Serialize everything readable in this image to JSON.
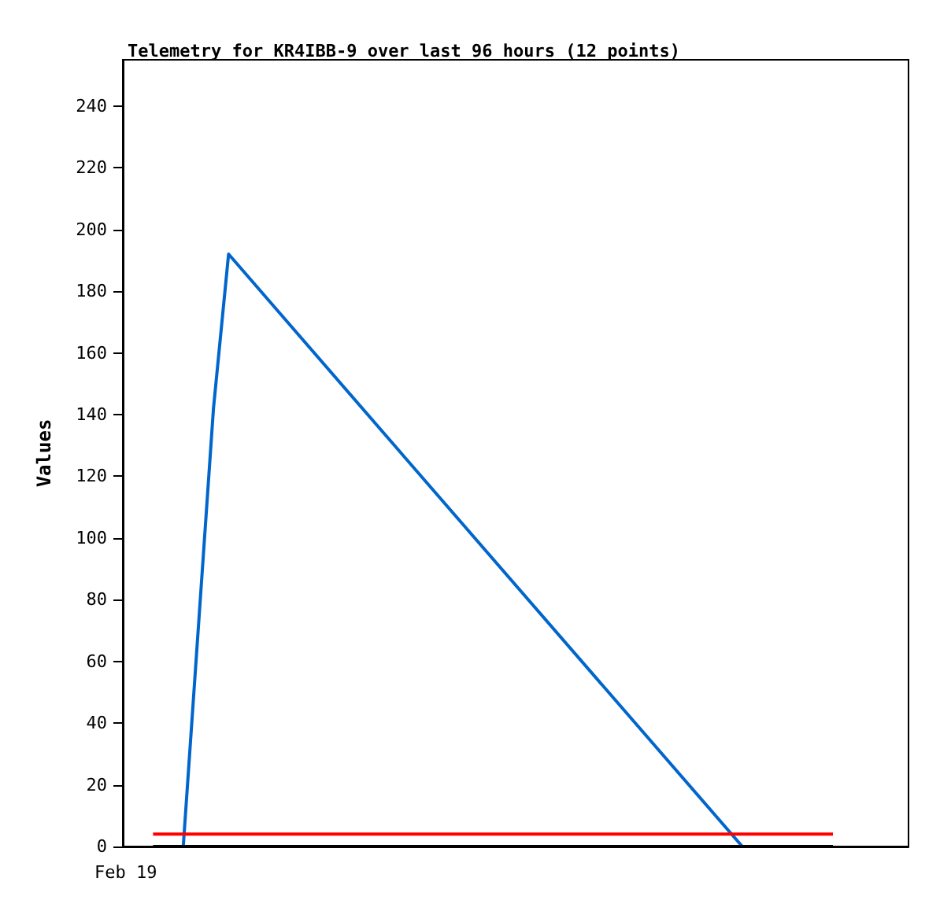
{
  "chart_data": {
    "type": "line",
    "title": "Telemetry for KR4IBB-9 over last 96 hours (12 points)",
    "ylabel": "Values",
    "annotations": [
      "Feb 19"
    ],
    "categories": [
      null,
      null,
      null,
      null,
      null,
      null,
      null,
      null,
      null,
      null,
      null,
      null,
      null,
      null,
      null,
      null,
      null,
      null,
      null,
      null,
      null,
      null,
      null,
      null,
      null,
      null,
      null,
      null,
      null,
      null,
      null,
      null,
      null,
      null,
      null,
      null,
      null,
      null,
      null,
      null,
      null,
      null,
      null,
      null,
      null,
      null,
      null,
      null,
      null,
      null,
      null,
      null,
      null
    ],
    "ylim": [
      0,
      255
    ],
    "yticks": [
      0,
      20,
      40,
      60,
      80,
      100,
      120,
      140,
      160,
      180,
      200,
      220,
      240
    ],
    "grid": false,
    "marker": "none",
    "line_style": "solid",
    "series": [
      {
        "color": "#0066cc",
        "values": [
          null,
          null,
          null,
          null,
          0,
          null,
          142,
          192,
          null,
          null,
          null,
          null,
          null,
          null,
          null,
          null,
          null,
          null,
          null,
          null,
          null,
          null,
          null,
          null,
          null,
          null,
          null,
          null,
          null,
          null,
          null,
          null,
          null,
          null,
          null,
          null,
          null,
          null,
          null,
          null,
          null,
          0,
          null,
          null,
          null,
          null,
          null,
          null,
          null,
          null,
          null,
          null,
          null
        ]
      },
      {
        "color": "#000000",
        "values": [
          null,
          null,
          0,
          0,
          0,
          0,
          0,
          0,
          0,
          0,
          0,
          0,
          0,
          0,
          0,
          0,
          0,
          0,
          0,
          0,
          0,
          0,
          0,
          0,
          0,
          0,
          0,
          0,
          0,
          0,
          0,
          0,
          0,
          0,
          0,
          0,
          0,
          0,
          0,
          0,
          0,
          0,
          0,
          0,
          0,
          0,
          0,
          0,
          null,
          null,
          null,
          null,
          null
        ]
      },
      {
        "color": "#ff0000",
        "values": [
          null,
          null,
          4,
          4,
          4,
          4,
          4,
          4,
          4,
          4,
          4,
          4,
          4,
          4,
          4,
          4,
          4,
          4,
          4,
          4,
          4,
          4,
          4,
          4,
          4,
          4,
          4,
          4,
          4,
          4,
          4,
          4,
          4,
          4,
          4,
          4,
          4,
          4,
          4,
          4,
          4,
          4,
          4,
          4,
          4,
          4,
          4,
          4,
          null,
          null,
          null,
          null,
          null
        ]
      }
    ]
  }
}
